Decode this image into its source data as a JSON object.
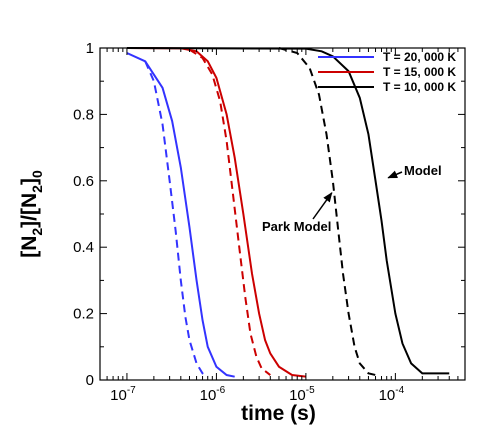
{
  "chart_data": {
    "type": "line",
    "xlabel": "time (s)",
    "ylabel": {
      "base1": "[N",
      "sub1": "2",
      "mid": "]/[N",
      "sub2": "2",
      "end": "]",
      "sub3": "0"
    },
    "x_scale": "log",
    "xlim": [
      5e-08,
      0.0006
    ],
    "ylim": [
      0,
      1
    ],
    "x_ticks": [
      {
        "value": 1e-07,
        "base": "10",
        "exp": "-7"
      },
      {
        "value": 1e-06,
        "base": "10",
        "exp": "-6"
      },
      {
        "value": 1e-05,
        "base": "10",
        "exp": "-5"
      },
      {
        "value": 0.0001,
        "base": "10",
        "exp": "-4"
      }
    ],
    "y_ticks": [
      {
        "value": 0,
        "label": "0"
      },
      {
        "value": 0.2,
        "label": "0.2"
      },
      {
        "value": 0.4,
        "label": "0.4"
      },
      {
        "value": 0.6,
        "label": "0.6"
      },
      {
        "value": 0.8,
        "label": "0.8"
      },
      {
        "value": 1,
        "label": "1"
      }
    ],
    "grid": false,
    "legend_position": "top-right",
    "legend": [
      {
        "label": "T = 20, 000 K",
        "color": "#3333ff"
      },
      {
        "label": "T = 15, 000 K",
        "color": "#cc0000"
      },
      {
        "label": "T = 10, 000 K",
        "color": "#000000"
      }
    ],
    "series": [
      {
        "temperature": "20000 K",
        "model": "Model",
        "color": "#3333ff",
        "dash": "solid",
        "points": [
          [
            1e-07,
            0.985
          ],
          [
            1.6e-07,
            0.96
          ],
          [
            2.5e-07,
            0.88
          ],
          [
            3.2e-07,
            0.78
          ],
          [
            4e-07,
            0.64
          ],
          [
            5e-07,
            0.46
          ],
          [
            6e-07,
            0.3
          ],
          [
            7e-07,
            0.18
          ],
          [
            8e-07,
            0.1
          ],
          [
            1e-06,
            0.04
          ],
          [
            1.3e-06,
            0.015
          ],
          [
            1.6e-06,
            0.01
          ]
        ]
      },
      {
        "temperature": "20000 K",
        "model": "Park Model",
        "color": "#3333ff",
        "dash": "dashed",
        "points": [
          [
            1.6e-07,
            0.96
          ],
          [
            2e-07,
            0.9
          ],
          [
            2.5e-07,
            0.77
          ],
          [
            3e-07,
            0.6
          ],
          [
            3.5e-07,
            0.45
          ],
          [
            4e-07,
            0.3
          ],
          [
            4.5e-07,
            0.19
          ],
          [
            5e-07,
            0.12
          ],
          [
            6e-07,
            0.05
          ],
          [
            7e-07,
            0.02
          ],
          [
            8e-07,
            0.01
          ]
        ]
      },
      {
        "temperature": "15000 K",
        "model": "Model",
        "color": "#cc0000",
        "dash": "solid",
        "points": [
          [
            1e-07,
            1
          ],
          [
            4e-07,
            0.999
          ],
          [
            6e-07,
            0.99
          ],
          [
            8e-07,
            0.96
          ],
          [
            1e-06,
            0.91
          ],
          [
            1.3e-06,
            0.8
          ],
          [
            1.6e-06,
            0.67
          ],
          [
            2e-06,
            0.5
          ],
          [
            2.5e-06,
            0.32
          ],
          [
            3e-06,
            0.2
          ],
          [
            3.5e-06,
            0.12
          ],
          [
            4e-06,
            0.08
          ],
          [
            5e-06,
            0.04
          ],
          [
            7e-06,
            0.015
          ],
          [
            1e-05,
            0.01
          ]
        ]
      },
      {
        "temperature": "15000 K",
        "model": "Park Model",
        "color": "#cc0000",
        "dash": "dashed",
        "points": [
          [
            5e-07,
            0.995
          ],
          [
            7e-07,
            0.97
          ],
          [
            9e-07,
            0.92
          ],
          [
            1.1e-06,
            0.84
          ],
          [
            1.3e-06,
            0.72
          ],
          [
            1.5e-06,
            0.58
          ],
          [
            1.8e-06,
            0.4
          ],
          [
            2.1e-06,
            0.25
          ],
          [
            2.4e-06,
            0.14
          ],
          [
            2.8e-06,
            0.07
          ],
          [
            3.2e-06,
            0.035
          ],
          [
            4e-06,
            0.015
          ]
        ]
      },
      {
        "temperature": "10000 K",
        "model": "Model",
        "color": "#000000",
        "dash": "solid",
        "points": [
          [
            1e-07,
            1
          ],
          [
            1e-05,
            0.998
          ],
          [
            1.5e-05,
            0.99
          ],
          [
            2e-05,
            0.975
          ],
          [
            3e-05,
            0.93
          ],
          [
            4e-05,
            0.85
          ],
          [
            5e-05,
            0.74
          ],
          [
            6e-05,
            0.6
          ],
          [
            7e-05,
            0.48
          ],
          [
            8e-05,
            0.36
          ],
          [
            0.0001,
            0.2
          ],
          [
            0.00012,
            0.11
          ],
          [
            0.00015,
            0.05
          ],
          [
            0.0002,
            0.02
          ],
          [
            0.0004,
            0.02
          ]
        ]
      },
      {
        "temperature": "10000 K",
        "model": "Park Model",
        "color": "#000000",
        "dash": "dashed",
        "points": [
          [
            5e-06,
            1
          ],
          [
            8e-06,
            0.985
          ],
          [
            1.1e-05,
            0.94
          ],
          [
            1.4e-05,
            0.86
          ],
          [
            1.7e-05,
            0.74
          ],
          [
            2e-05,
            0.6
          ],
          [
            2.3e-05,
            0.45
          ],
          [
            2.6e-05,
            0.32
          ],
          [
            3e-05,
            0.2
          ],
          [
            3.5e-05,
            0.1
          ],
          [
            4e-05,
            0.05
          ],
          [
            5e-05,
            0.02
          ],
          [
            6e-05,
            0.015
          ]
        ]
      }
    ],
    "annotations": [
      {
        "text": "Model",
        "target": [
          7.5e-05,
          0.6
        ]
      },
      {
        "text": "Park Model",
        "target": [
          2.05e-05,
          0.57
        ]
      }
    ]
  }
}
